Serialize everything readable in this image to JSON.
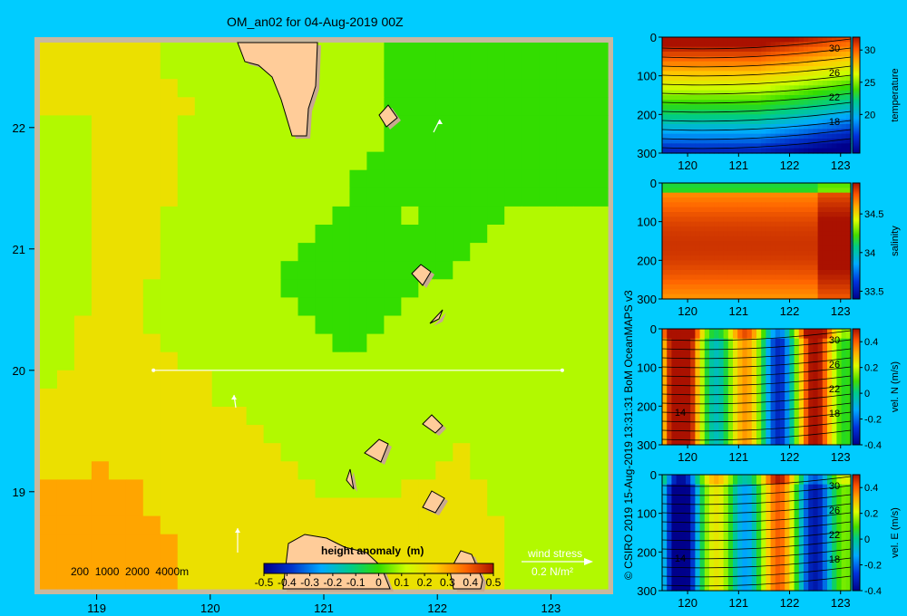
{
  "colors": {
    "background": "#00ccff",
    "land": "#ffcc99",
    "land_shadow": "#c8a890",
    "frame": "#c8b8a0"
  },
  "chart_data": [
    {
      "type": "heatmap",
      "title": "OM_an02 for 04-Aug-2019 00Z",
      "xticks": [
        "119",
        "120",
        "121",
        "122",
        "123"
      ],
      "yticks": [
        "22",
        "21",
        "20",
        "19"
      ],
      "xlim": [
        118.5,
        123.5
      ],
      "ylim": [
        18.2,
        22.7
      ],
      "transect": {
        "lat": 20.0,
        "lon_start": 119.5,
        "lon_end": 123.1
      },
      "depth_legend": "200  1000  2000  4000m",
      "colorbar": {
        "label": "height anomaly  (m)",
        "ticks": [
          "-0.5",
          "-0.4",
          "-0.3",
          "-0.2",
          "-0.1",
          "0",
          "0.1",
          "0.2",
          "0.3",
          "0.4",
          "0.5"
        ],
        "range": [
          -0.5,
          0.5
        ]
      },
      "wind_legend": {
        "label": "wind stress",
        "value": "0.2 N/m²"
      },
      "field_approx": [
        [
          0.18,
          0.17,
          0.15,
          0.12,
          0.12,
          0.14,
          0.08,
          0.03,
          0.02,
          -0.02,
          -0.03
        ],
        [
          0.16,
          0.15,
          0.17,
          0.14,
          0.12,
          0.1,
          0.07,
          0.04,
          0.02,
          -0.01,
          -0.02
        ],
        [
          0.1,
          0.16,
          0.17,
          0.13,
          0.1,
          0.08,
          0.05,
          0.04,
          0.03,
          0.01,
          0.02
        ],
        [
          0.1,
          0.16,
          0.16,
          0.12,
          0.08,
          0.06,
          0.04,
          0.05,
          0.04,
          0.05,
          0.06
        ],
        [
          0.1,
          0.16,
          0.15,
          0.1,
          0.06,
          0.04,
          0.03,
          0.04,
          0.05,
          0.07,
          0.08
        ],
        [
          0.11,
          0.17,
          0.14,
          0.1,
          0.07,
          0.05,
          0.03,
          0.06,
          0.08,
          0.1,
          0.1
        ],
        [
          0.14,
          0.19,
          0.18,
          0.15,
          0.1,
          0.08,
          0.07,
          0.09,
          0.12,
          0.12,
          0.11
        ],
        [
          0.2,
          0.23,
          0.22,
          0.18,
          0.16,
          0.12,
          0.11,
          0.12,
          0.14,
          0.12,
          0.1
        ],
        [
          0.25,
          0.27,
          0.24,
          0.22,
          0.18,
          0.15,
          0.14,
          0.15,
          0.17,
          0.12,
          0.1
        ],
        [
          0.27,
          0.28,
          0.26,
          0.23,
          0.21,
          0.18,
          0.18,
          0.19,
          0.19,
          0.14,
          0.12
        ]
      ]
    },
    {
      "type": "heatmap",
      "xticks": [
        "120",
        "121",
        "122",
        "123"
      ],
      "yticks": [
        "0",
        "100",
        "200",
        "300"
      ],
      "xlim": [
        119.5,
        123.2
      ],
      "ylim": [
        0,
        300
      ],
      "colorbar": {
        "label": "temperature",
        "ticks": [
          "30",
          "25",
          "20"
        ],
        "range": [
          14,
          32
        ]
      },
      "contour_labels": [
        "30",
        "26",
        "22",
        "18"
      ]
    },
    {
      "type": "heatmap",
      "xticks": [
        "120",
        "121",
        "122",
        "123"
      ],
      "yticks": [
        "0",
        "100",
        "200",
        "300"
      ],
      "xlim": [
        119.5,
        123.2
      ],
      "ylim": [
        0,
        300
      ],
      "colorbar": {
        "label": "salinity",
        "ticks": [
          "34.5",
          "34",
          "33.5"
        ],
        "range": [
          33.4,
          34.9
        ]
      }
    },
    {
      "type": "heatmap",
      "xticks": [
        "120",
        "121",
        "122",
        "123"
      ],
      "yticks": [
        "0",
        "100",
        "200",
        "300"
      ],
      "xlim": [
        119.5,
        123.2
      ],
      "ylim": [
        0,
        300
      ],
      "colorbar": {
        "label": "vel. N  (m/s)",
        "ticks": [
          "0.4",
          "0.2",
          "0",
          "-0.2",
          "-0.4"
        ],
        "range": [
          -0.4,
          0.5
        ]
      },
      "contour_labels": [
        "30",
        "26",
        "22",
        "18",
        "14"
      ]
    },
    {
      "type": "heatmap",
      "xticks": [
        "120",
        "121",
        "122",
        "123"
      ],
      "yticks": [
        "0",
        "100",
        "200",
        "300"
      ],
      "xlim": [
        119.5,
        123.2
      ],
      "ylim": [
        0,
        300
      ],
      "colorbar": {
        "label": "vel. E  (m/s)",
        "ticks": [
          "0.4",
          "0.2",
          "0",
          "-0.2",
          "-0.4"
        ],
        "range": [
          -0.4,
          0.5
        ]
      },
      "contour_labels": [
        "30",
        "26",
        "22",
        "18",
        "14"
      ]
    }
  ],
  "copyright": "© CSIRO 2019   15-Aug-2019 13:31:31 BoM OceanMAPS v3"
}
